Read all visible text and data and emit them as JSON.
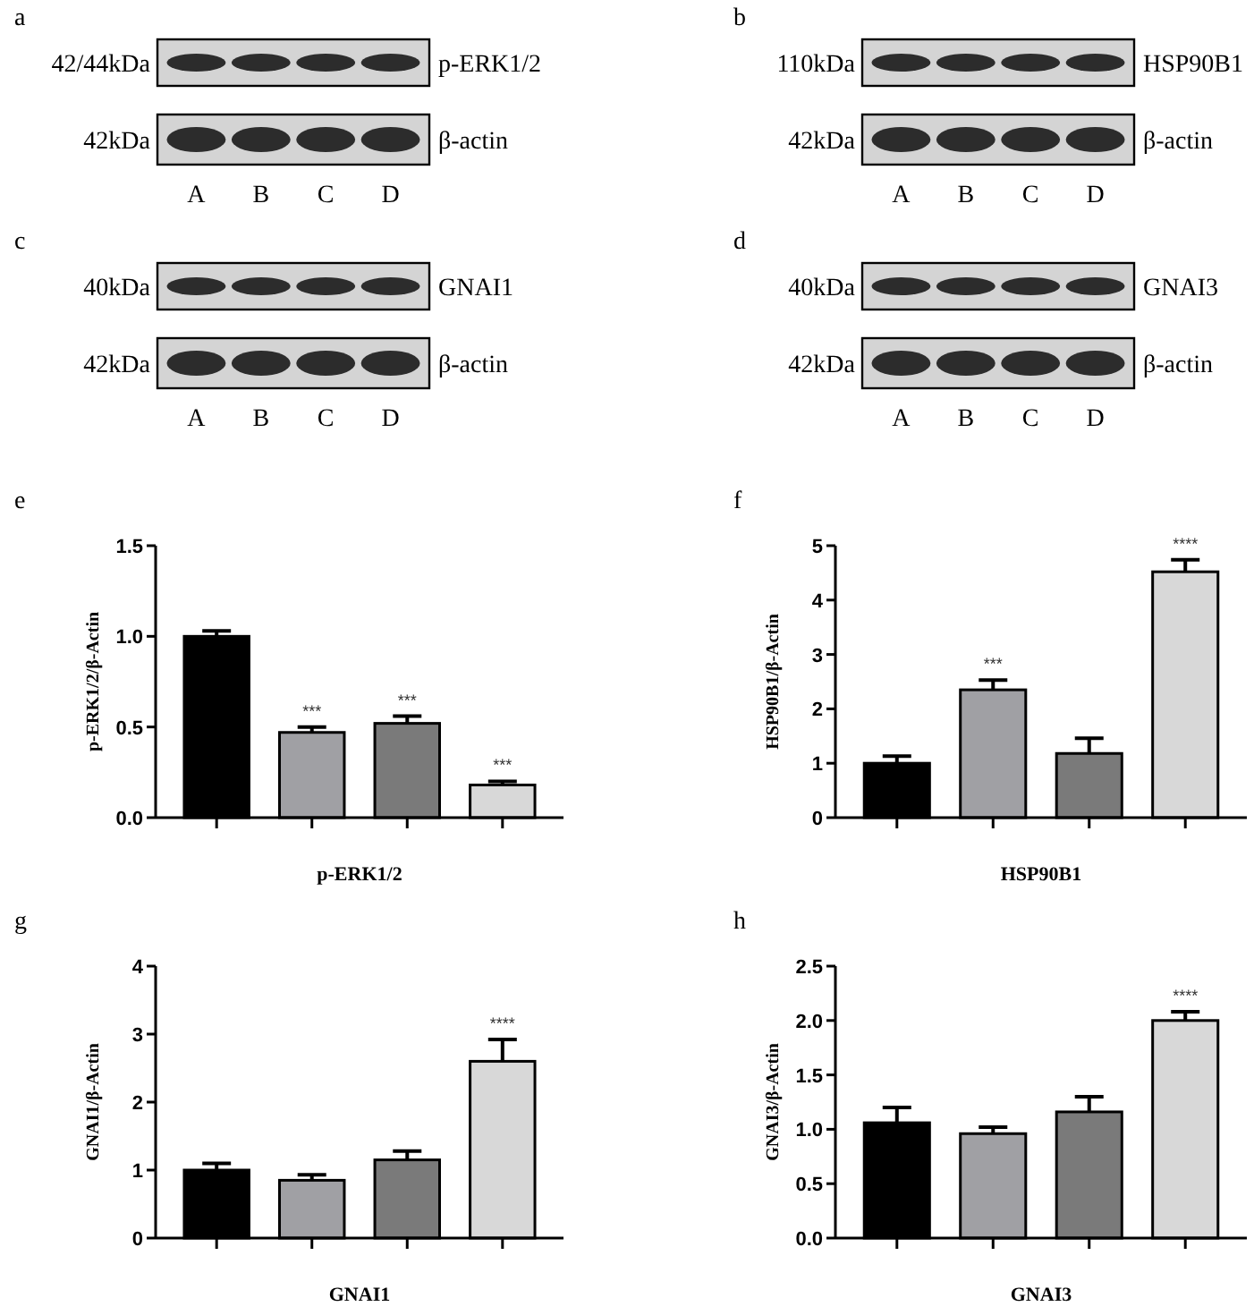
{
  "chart_data": [
    {
      "type": "other",
      "title": "a",
      "categories": [
        "A",
        "B",
        "C",
        "D"
      ],
      "annotations": [
        "42/44kDa",
        "p-ERK1/2",
        "42kDa",
        "β-actin"
      ]
    },
    {
      "type": "other",
      "title": "b",
      "categories": [
        "A",
        "B",
        "C",
        "D"
      ],
      "annotations": [
        "110kDa",
        "HSP90B1",
        "42kDa",
        "β-actin"
      ]
    },
    {
      "type": "other",
      "title": "c",
      "categories": [
        "A",
        "B",
        "C",
        "D"
      ],
      "annotations": [
        "40kDa",
        "GNAI1",
        "42kDa",
        "β-actin"
      ]
    },
    {
      "type": "other",
      "title": "d",
      "categories": [
        "A",
        "B",
        "C",
        "D"
      ],
      "annotations": [
        "40kDa",
        "GNAI3",
        "42kDa",
        "β-actin"
      ]
    },
    {
      "type": "bar",
      "title": "e",
      "xlabel": "p-ERK1/2",
      "ylabel": "p-ERK1/2/β-Actin",
      "categories": [
        null,
        null,
        null,
        null
      ],
      "values": [
        1.0,
        0.47,
        0.52,
        0.18
      ],
      "errors": [
        0.03,
        0.03,
        0.04,
        0.02
      ],
      "colors": [
        "#000000",
        "#a0a0a4",
        "#7a7a7a",
        "#d8d8d8"
      ],
      "ylim": [
        0,
        1.5
      ],
      "yticks": [
        {
          "value": 0,
          "label": "0.0"
        },
        {
          "value": 0.5,
          "label": "0.5"
        },
        {
          "value": 1,
          "label": "1.0"
        },
        {
          "value": 1.5,
          "label": "1.5"
        }
      ],
      "tick_labels": "y",
      "annotations": [
        "***",
        "***",
        "***"
      ]
    },
    {
      "type": "bar",
      "title": "f",
      "xlabel": "HSP90B1",
      "ylabel": "HSP90B1/β-Actin",
      "categories": [
        null,
        null,
        null,
        null
      ],
      "values": [
        1.0,
        2.35,
        1.18,
        4.52
      ],
      "errors": [
        0.13,
        0.18,
        0.28,
        0.22
      ],
      "colors": [
        "#000000",
        "#a0a0a4",
        "#7a7a7a",
        "#d8d8d8"
      ],
      "ylim": [
        0,
        5
      ],
      "yticks": [
        0,
        1,
        2,
        3,
        4,
        5
      ],
      "tick_labels": "y",
      "annotations": [
        "***",
        "****"
      ]
    },
    {
      "type": "bar",
      "title": "g",
      "xlabel": "GNAI1",
      "ylabel": "GNAI1/β-Actin",
      "categories": [
        null,
        null,
        null,
        null
      ],
      "values": [
        1.0,
        0.85,
        1.15,
        2.6
      ],
      "errors": [
        0.1,
        0.08,
        0.13,
        0.32
      ],
      "colors": [
        "#000000",
        "#a0a0a4",
        "#7a7a7a",
        "#d8d8d8"
      ],
      "ylim": [
        0,
        4
      ],
      "yticks": [
        0,
        1,
        2,
        3,
        4
      ],
      "tick_labels": "y",
      "annotations": [
        "****"
      ]
    },
    {
      "type": "bar",
      "title": "h",
      "xlabel": "GNAI3",
      "ylabel": "GNAI3/β-Actin",
      "categories": [
        null,
        null,
        null,
        null
      ],
      "values": [
        1.06,
        0.96,
        1.16,
        2.0
      ],
      "errors": [
        0.14,
        0.06,
        0.14,
        0.08
      ],
      "colors": [
        "#000000",
        "#a0a0a4",
        "#7a7a7a",
        "#d8d8d8"
      ],
      "ylim": [
        0,
        2.5
      ],
      "yticks": [
        {
          "value": 0,
          "label": "0.0"
        },
        {
          "value": 0.5,
          "label": "0.5"
        },
        {
          "value": 1,
          "label": "1.0"
        },
        {
          "value": 1.5,
          "label": "1.5"
        },
        {
          "value": 2,
          "label": "2.0"
        },
        {
          "value": 2.5,
          "label": "2.5"
        }
      ],
      "tick_labels": "y",
      "annotations": [
        "****"
      ]
    }
  ]
}
